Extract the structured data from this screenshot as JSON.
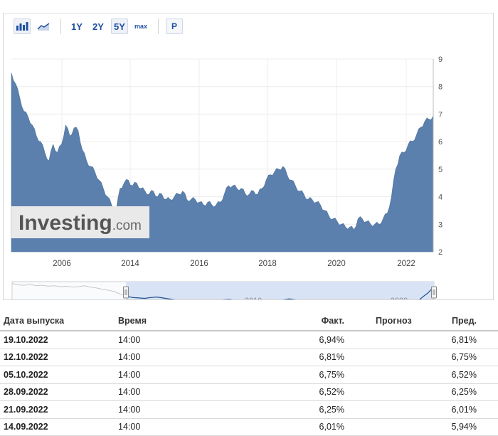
{
  "toolbar": {
    "buttons": [
      {
        "name": "bar-chart-icon",
        "label": ""
      },
      {
        "name": "area-chart-icon",
        "label": ""
      }
    ],
    "periods": [
      {
        "label": "1Y",
        "selected": false
      },
      {
        "label": "2Y",
        "selected": false
      },
      {
        "label": "5Y",
        "selected": true
      },
      {
        "label": "max",
        "selected": false
      }
    ],
    "p_label": "P"
  },
  "chart_data": {
    "type": "area",
    "ylim": [
      2,
      9
    ],
    "y_ticks": [
      "2",
      "3",
      "4",
      "5",
      "6",
      "7",
      "8",
      "9"
    ],
    "x_tick_labels": [
      "2006",
      "2014",
      "2016",
      "2018",
      "2020",
      "2022"
    ],
    "grid": true,
    "color": "#5b80ad",
    "watermark": "Investing.com",
    "series": [
      {
        "values": [
          8.5,
          8.1,
          7.6,
          7.1,
          6.9,
          6.6,
          6.2,
          6.0,
          5.6,
          5.3,
          5.9,
          5.6,
          5.9,
          6.6,
          6.2,
          6.5,
          6.4,
          5.7,
          5.3,
          5.1,
          4.9,
          4.6,
          4.3,
          4.0,
          3.7,
          3.4,
          4.3,
          4.5,
          4.6,
          4.4,
          4.5,
          4.3,
          4.2,
          4.1,
          4.2,
          4.0,
          4.1,
          3.9,
          3.9,
          4.0,
          4.1,
          4.2,
          3.9,
          3.9,
          3.9,
          3.8,
          3.7,
          3.8,
          3.7,
          3.7,
          3.8,
          4.1,
          4.4,
          4.4,
          4.3,
          4.3,
          4.1,
          4.1,
          4.2,
          4.1,
          4.3,
          4.6,
          4.8,
          4.9,
          5.0,
          5.1,
          4.8,
          4.6,
          4.4,
          4.2,
          4.1,
          3.9,
          3.9,
          3.8,
          3.7,
          3.5,
          3.3,
          3.2,
          3.1,
          3.0,
          2.9,
          2.9,
          2.8,
          3.2,
          3.2,
          3.1,
          3.0,
          3.0,
          3.0,
          3.2,
          3.4,
          4.0,
          5.0,
          5.5,
          5.6,
          5.9,
          6.01,
          6.25,
          6.52,
          6.75,
          6.81,
          6.94
        ],
        "mini_values": [
          7.6,
          7.3,
          7.2,
          7.4,
          7.1,
          7.2,
          7.0,
          7.1,
          6.9,
          7.0,
          6.8,
          6.9,
          7.1,
          6.8,
          6.6,
          6.3,
          6.1,
          5.8,
          5.2,
          4.8,
          4.5,
          4.4,
          4.3,
          4.5,
          4.6,
          4.4,
          4.2,
          4.0,
          3.9,
          3.8,
          3.7,
          3.8,
          3.7,
          3.8,
          3.9,
          4.0,
          4.1,
          3.9,
          3.8,
          3.7,
          3.6,
          3.7,
          3.8,
          3.9,
          3.8,
          4.0,
          4.2,
          4.0,
          3.7,
          3.5,
          3.3,
          3.2,
          3.1,
          3.0,
          2.9,
          2.9,
          3.0,
          3.1,
          3.2,
          3.3,
          3.4,
          3.2,
          3.1,
          2.9,
          2.8,
          2.8,
          2.9,
          3.3,
          4.5,
          5.5,
          6.9
        ]
      }
    ],
    "navigator_labels": [
      "2010",
      "2020"
    ]
  },
  "table": {
    "headers": {
      "date": "Дата выпуска",
      "time": "Время",
      "actual": "Факт.",
      "forecast": "Прогноз",
      "previous": "Пред."
    },
    "rows": [
      {
        "date": "19.10.2022",
        "time": "14:00",
        "actual": "6,94%",
        "forecast": "",
        "previous": "6,81%"
      },
      {
        "date": "12.10.2022",
        "time": "14:00",
        "actual": "6,81%",
        "forecast": "",
        "previous": "6,75%"
      },
      {
        "date": "05.10.2022",
        "time": "14:00",
        "actual": "6,75%",
        "forecast": "",
        "previous": "6,52%"
      },
      {
        "date": "28.09.2022",
        "time": "14:00",
        "actual": "6,52%",
        "forecast": "",
        "previous": "6,25%"
      },
      {
        "date": "21.09.2022",
        "time": "14:00",
        "actual": "6,25%",
        "forecast": "",
        "previous": "6,01%"
      },
      {
        "date": "14.09.2022",
        "time": "14:00",
        "actual": "6,01%",
        "forecast": "",
        "previous": "5,94%"
      }
    ]
  }
}
